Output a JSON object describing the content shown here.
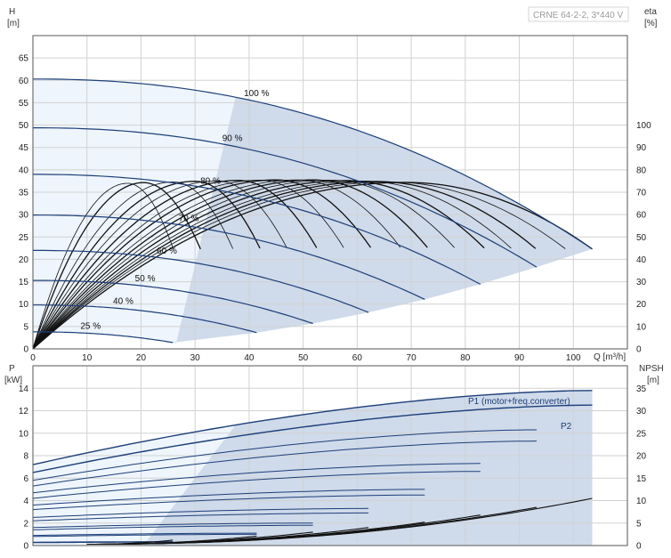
{
  "model_label": "CRNE 64-2-2, 3*440 V",
  "chart_data": [
    {
      "type": "line",
      "name": "head",
      "ylabel_left": [
        "H",
        "[m]"
      ],
      "ylabel_right": [
        "eta",
        "[%]"
      ],
      "xlabel": "Q [m³/h]",
      "xlim": [
        0,
        110
      ],
      "ylim": [
        0,
        70
      ],
      "xticks": [
        0,
        10,
        20,
        30,
        40,
        50,
        60,
        70,
        80,
        90,
        100
      ],
      "yticks": [
        0,
        5,
        10,
        15,
        20,
        25,
        30,
        35,
        40,
        45,
        50,
        55,
        60,
        65
      ],
      "y2lim": [
        0,
        140
      ],
      "y2ticks": [
        0,
        10,
        20,
        30,
        40,
        50,
        60,
        70,
        80,
        90,
        100
      ],
      "grid": true,
      "speed_curves": [
        {
          "label": "100 %",
          "qmax": 103.5,
          "h0": 60.3
        },
        {
          "label": "90 %",
          "qmax": 93.2,
          "h0": 49.4
        },
        {
          "label": "80 %",
          "qmax": 82.8,
          "h0": 39.0
        },
        {
          "label": "70 %",
          "qmax": 72.5,
          "h0": 29.9
        },
        {
          "label": "60 %",
          "qmax": 62.1,
          "h0": 22.0
        },
        {
          "label": "50 %",
          "qmax": 51.8,
          "h0": 15.3
        },
        {
          "label": "40 %",
          "qmax": 41.4,
          "h0": 9.8
        },
        {
          "label": "25 %",
          "qmax": 25.9,
          "h0": 3.8
        }
      ],
      "efficiency_curves": [
        {
          "qmax": 26.0,
          "qpeak": 17.5,
          "peak": 74.0
        },
        {
          "qmax": 31.0,
          "qpeak": 20.5,
          "peak": 74.3
        },
        {
          "qmax": 37.0,
          "qpeak": 26.0,
          "peak": 74.6
        },
        {
          "qmax": 42.0,
          "qpeak": 30.0,
          "peak": 74.9
        },
        {
          "qmax": 47.0,
          "qpeak": 34.0,
          "peak": 75.1
        },
        {
          "qmax": 52.5,
          "qpeak": 38.0,
          "peak": 75.3
        },
        {
          "qmax": 57.5,
          "qpeak": 42.0,
          "peak": 75.4
        },
        {
          "qmax": 62.5,
          "qpeak": 45.0,
          "peak": 75.5
        },
        {
          "qmax": 68.0,
          "qpeak": 49.0,
          "peak": 75.5
        },
        {
          "qmax": 73.0,
          "qpeak": 52.0,
          "peak": 75.5
        },
        {
          "qmax": 78.0,
          "qpeak": 55.0,
          "peak": 75.4
        },
        {
          "qmax": 83.5,
          "qpeak": 58.0,
          "peak": 75.2
        },
        {
          "qmax": 88.5,
          "qpeak": 61.0,
          "peak": 75.0
        },
        {
          "qmax": 93.0,
          "qpeak": 63.5,
          "peak": 74.8
        },
        {
          "qmax": 98.5,
          "qpeak": 66.0,
          "peak": 74.6
        },
        {
          "qmax": 103.5,
          "qpeak": 69.0,
          "peak": 74.4
        }
      ]
    },
    {
      "type": "line",
      "name": "power_npsh",
      "ylabel_left": [
        "P",
        "[kW]"
      ],
      "ylabel_right": [
        "NPSH",
        "[m]"
      ],
      "xlim": [
        0,
        110
      ],
      "ylim": [
        0,
        16
      ],
      "yticks": [
        0,
        2,
        4,
        6,
        8,
        10,
        12,
        14
      ],
      "y2ticks": [
        0,
        5,
        10,
        15,
        20,
        25,
        30,
        35
      ],
      "curve_labels": [
        "P1 (motor+freq.converter)",
        "P2"
      ],
      "power_curves": [
        {
          "qmax": 103.5,
          "p0": 7.2,
          "pend": 13.8
        },
        {
          "qmax": 103.5,
          "p0": 6.5,
          "pend": 12.5
        },
        {
          "qmax": 93.2,
          "p0": 5.8,
          "pend": 10.3
        },
        {
          "qmax": 93.2,
          "p0": 5.3,
          "pend": 9.3
        },
        {
          "qmax": 82.8,
          "p0": 4.7,
          "pend": 7.3
        },
        {
          "qmax": 82.8,
          "p0": 4.2,
          "pend": 6.6
        },
        {
          "qmax": 72.5,
          "p0": 3.6,
          "pend": 5.0
        },
        {
          "qmax": 72.5,
          "p0": 3.2,
          "pend": 4.5
        },
        {
          "qmax": 62.1,
          "p0": 2.5,
          "pend": 3.3
        },
        {
          "qmax": 62.1,
          "p0": 2.2,
          "pend": 2.9
        },
        {
          "qmax": 51.8,
          "p0": 1.6,
          "pend": 2.0
        },
        {
          "qmax": 51.8,
          "p0": 1.4,
          "pend": 1.8
        },
        {
          "qmax": 41.4,
          "p0": 0.9,
          "pend": 1.1
        },
        {
          "qmax": 41.4,
          "p0": 0.8,
          "pend": 1.0
        },
        {
          "qmax": 25.9,
          "p0": 0.3,
          "pend": 0.35
        },
        {
          "qmax": 25.9,
          "p0": 0.25,
          "pend": 0.3
        }
      ],
      "npsh_curves": [
        {
          "q0": 10.0,
          "qmax": 103.5,
          "n0": 0.3,
          "nend": 10.5
        },
        {
          "q0": 10.0,
          "qmax": 93.2,
          "n0": 0.3,
          "nend": 8.5
        },
        {
          "q0": 10.0,
          "qmax": 82.8,
          "n0": 0.3,
          "nend": 6.8
        },
        {
          "q0": 10.0,
          "qmax": 72.5,
          "n0": 0.3,
          "nend": 5.2
        },
        {
          "q0": 10.0,
          "qmax": 62.1,
          "n0": 0.3,
          "nend": 4.0
        },
        {
          "q0": 10.0,
          "qmax": 51.8,
          "n0": 0.3,
          "nend": 3.0
        },
        {
          "q0": 10.0,
          "qmax": 41.4,
          "n0": 0.3,
          "nend": 2.1
        },
        {
          "q0": 10.0,
          "qmax": 25.9,
          "n0": 0.3,
          "nend": 1.2
        }
      ]
    }
  ]
}
